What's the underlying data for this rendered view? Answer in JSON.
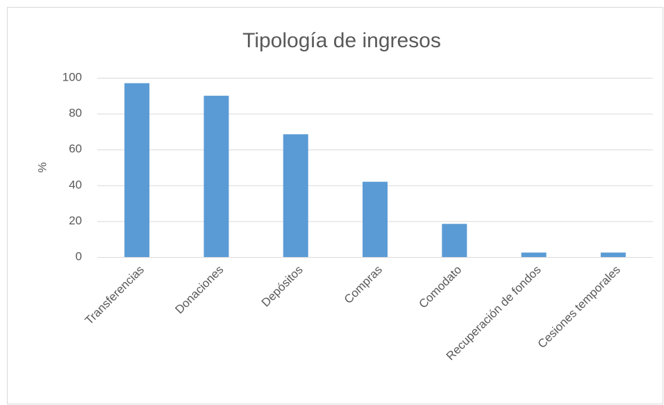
{
  "chart_data": {
    "type": "bar",
    "title": "Tipología de ingresos",
    "y_label": "%",
    "categories": [
      "Transferencias",
      "Donaciones",
      "Depósitos",
      "Compras",
      "Comodato",
      "Recuperación de fondos",
      "Cesiones temporales"
    ],
    "values": [
      97,
      90,
      68.5,
      42,
      18.5,
      2.5,
      2.5
    ],
    "color": "#5b9bd5",
    "ylim": [
      0,
      100
    ],
    "yticks": [
      0,
      20,
      40,
      60,
      80,
      100
    ],
    "grid": true
  }
}
